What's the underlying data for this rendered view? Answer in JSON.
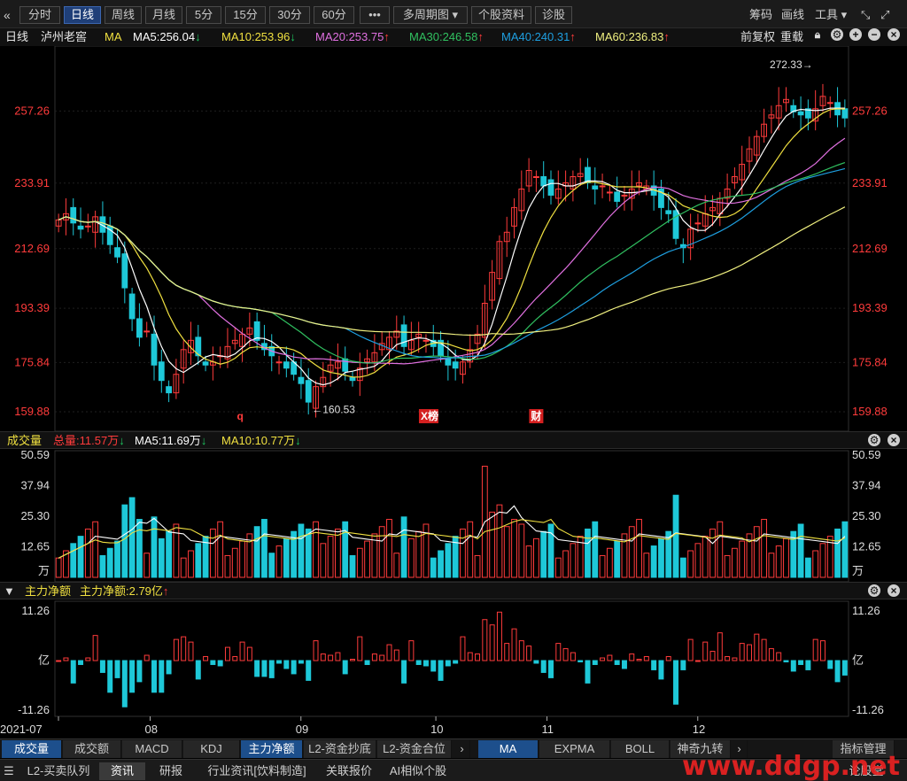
{
  "toolbar": {
    "back_icon": "double-left-arrow",
    "items": [
      "分时",
      "日线",
      "周线",
      "月线",
      "5分",
      "15分",
      "30分",
      "60分",
      "•••",
      "多周期图 ▾",
      "个股资料",
      "诊股"
    ],
    "active": "日线",
    "right": [
      "筹码",
      "画线",
      "工具 ▾"
    ],
    "expand_icon": "expand-arrows"
  },
  "legend": {
    "period": "日线",
    "stock_name": "泸州老窖",
    "indicator": "MA",
    "ma5": "MA5:256.04",
    "ma10": "MA10:253.96",
    "ma20": "MA20:253.75",
    "ma30": "MA30:246.58",
    "ma40": "MA40:240.31",
    "ma60": "MA60:236.83",
    "ma5_arrow": "↓",
    "ma10_arrow": "↓",
    "ma20_arrow": "↑",
    "ma30_arrow": "↑",
    "ma40_arrow": "↑",
    "ma60_arrow": "↑",
    "adjust": "前复权",
    "reload": "重载",
    "colors": {
      "ma5": "#ffffff",
      "ma10": "#f0e040",
      "ma20": "#e070e0",
      "ma30": "#30c060",
      "ma40": "#1e9fe0",
      "ma60": "#f0f080",
      "up": "#ff3b3b",
      "down": "#1ec8d8"
    }
  },
  "price_axis": {
    "ticks": [
      "257.26",
      "233.91",
      "212.69",
      "193.39",
      "175.84",
      "159.88"
    ],
    "high_label": "272.33→",
    "low_label": "←160.53",
    "markers": [
      "q",
      "X榜",
      "财"
    ]
  },
  "volume_panel": {
    "title": "成交量",
    "total": "总量:11.57万",
    "ma5": "MA5:11.69万",
    "ma10": "MA10:10.77万",
    "total_arrow": "↓",
    "ma5_arrow": "↓",
    "ma10_arrow": "↓",
    "ticks": [
      "50.59",
      "37.94",
      "25.30",
      "12.65",
      "万"
    ]
  },
  "flow_panel": {
    "title": "主力净额",
    "value": "主力净额:2.79亿",
    "value_arrow": "↑",
    "ticks": [
      "11.26",
      "亿",
      "-11.26"
    ]
  },
  "x_axis": {
    "labels": [
      "2021-07",
      "08",
      "09",
      "10",
      "11",
      "12"
    ]
  },
  "chart_data": {
    "type": "candlestick",
    "title": "泸州老窖 日线",
    "ylim": [
      155,
      276
    ],
    "high": 272.33,
    "low": 160.53,
    "approx_closes": [
      222,
      224,
      221,
      219,
      220,
      223,
      218,
      214,
      210,
      200,
      190,
      184,
      186,
      175,
      170,
      166,
      172,
      180,
      183,
      178,
      175,
      176,
      178,
      181,
      183,
      185,
      187,
      183,
      180,
      178,
      176,
      174,
      172,
      169,
      163,
      168,
      171,
      175,
      176,
      173,
      170,
      174,
      177,
      179,
      182,
      184,
      186,
      181,
      183,
      185,
      183,
      181,
      178,
      175,
      174,
      176,
      180,
      185,
      195,
      205,
      215,
      218,
      226,
      232,
      238,
      236,
      233,
      230,
      232,
      234,
      236,
      237,
      234,
      232,
      233,
      231,
      228,
      230,
      232,
      234,
      233,
      230,
      226,
      224,
      216,
      213,
      219,
      221,
      224,
      226,
      229,
      232,
      236,
      240,
      245,
      249,
      253,
      256,
      259,
      261,
      257,
      256,
      255,
      258,
      262,
      260,
      256,
      255
    ],
    "volume_ma5": "11.69万",
    "volume_ma10": "10.77万",
    "main_net_flow": "2.79亿"
  },
  "tabs": [
    "成交量",
    "成交额",
    "MACD",
    "KDJ",
    "主力净额",
    "L2-资金抄底",
    "L2-资金合位",
    "MA",
    "EXPMA",
    "BOLL",
    "神奇九转",
    "指标管理"
  ],
  "tabs_active": [
    "成交量",
    "主力净额",
    "MA"
  ],
  "bottom_tabs": [
    "L2-买卖队列",
    "资讯",
    "研报",
    "行业资讯[饮料制造]",
    "关联报价",
    "AI相似个股",
    "论股堂"
  ],
  "bottom_active": "资讯",
  "watermark": "www.ddgp.net"
}
